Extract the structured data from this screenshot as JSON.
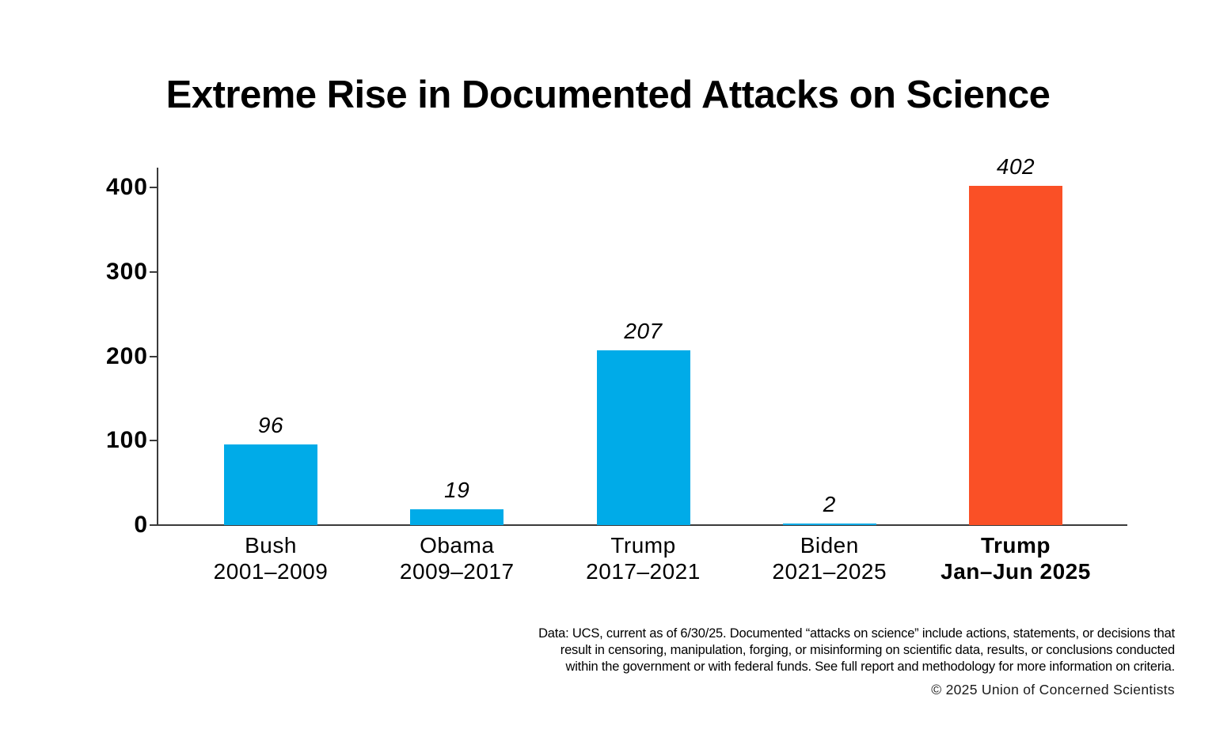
{
  "title": "Extreme Rise in Documented Attacks on Science",
  "chart_data": {
    "type": "bar",
    "title": "Extreme Rise in Documented Attacks on Science",
    "categories": [
      {
        "line1": "Bush",
        "line2": "2001–2009",
        "bold": false
      },
      {
        "line1": "Obama",
        "line2": "2009–2017",
        "bold": false
      },
      {
        "line1": "Trump",
        "line2": "2017–2021",
        "bold": false
      },
      {
        "line1": "Biden",
        "line2": "2021–2025",
        "bold": false
      },
      {
        "line1": "Trump",
        "line2": "Jan–Jun 2025",
        "bold": true
      }
    ],
    "values": [
      96,
      19,
      207,
      2,
      402
    ],
    "value_labels": [
      "96",
      "19",
      "207",
      "2",
      "402"
    ],
    "bar_colors": [
      "#00ABE8",
      "#00ABE8",
      "#00ABE8",
      "#00ABE8",
      "#FA5026"
    ],
    "colors": {
      "default_bar": "#00ABE8",
      "highlight_bar": "#FA5026",
      "axis": "#3a3a3a"
    },
    "xlabel": "",
    "ylabel": "",
    "ylim": [
      0,
      400
    ],
    "yticks": [
      "0",
      "100",
      "200",
      "300",
      "400"
    ],
    "grid": false,
    "legend": false
  },
  "footer": {
    "note_lines": [
      "Data: UCS, current as of 6/30/25. Documented “attacks on science” include actions, statements, or decisions that",
      "result in censoring, manipulation, forging, or misinforming on scientific data, results, or conclusions conducted",
      "within the government or with federal funds. See full report and methodology for more information on criteria."
    ],
    "copyright": "© 2025 Union of Concerned Scientists"
  }
}
